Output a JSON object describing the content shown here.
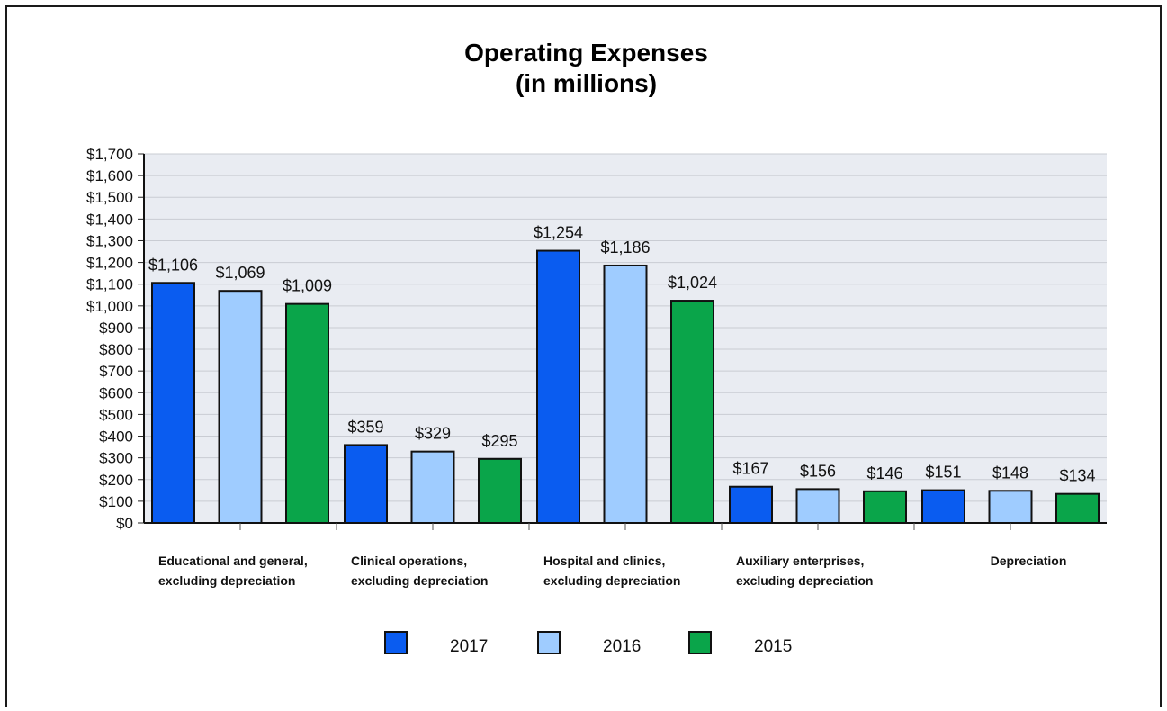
{
  "chart_data": {
    "type": "bar",
    "title": "Operating Expenses",
    "subtitle": "(in millions)",
    "categories": [
      [
        "Educational and general,",
        "excluding depreciation"
      ],
      [
        "Clinical operations,",
        "excluding depreciation"
      ],
      [
        "Hospital and clinics,",
        "excluding depreciation"
      ],
      [
        "Auxiliary enterprises,",
        "excluding depreciation"
      ],
      [
        "Depreciation"
      ]
    ],
    "series": [
      {
        "name": "2017",
        "color": "#0a5cf0",
        "values": [
          1106,
          359,
          1254,
          167,
          151
        ],
        "labels": [
          "$1,106",
          "$359",
          "$1,254",
          "$167",
          "$151"
        ]
      },
      {
        "name": "2016",
        "color": "#9fccff",
        "values": [
          1069,
          329,
          1186,
          156,
          148
        ],
        "labels": [
          "$1,069",
          "$329",
          "$1,186",
          "$156",
          "$148"
        ]
      },
      {
        "name": "2015",
        "color": "#0aa54a",
        "values": [
          1009,
          295,
          1024,
          146,
          134
        ],
        "labels": [
          "$1,009",
          "$295",
          "$1,024",
          "$146",
          "$134"
        ]
      }
    ],
    "ylim": [
      0,
      1700
    ],
    "ytick_step": 100,
    "ytick_labels": [
      "$0",
      "$100",
      "$200",
      "$300",
      "$400",
      "$500",
      "$600",
      "$700",
      "$800",
      "$900",
      "$1,000",
      "$1,100",
      "$1,200",
      "$1,300",
      "$1,400",
      "$1,500",
      "$1,600",
      "$1,700"
    ],
    "xlabel": "",
    "ylabel": "",
    "grid": true,
    "legend_position": "bottom-center",
    "plot_background": "#e9ecf2"
  }
}
